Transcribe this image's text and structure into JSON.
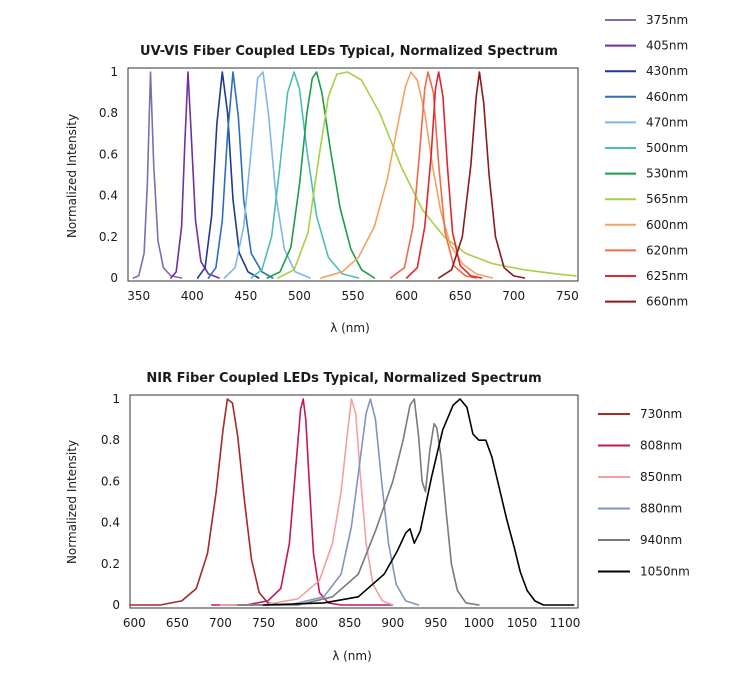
{
  "chart_data": [
    {
      "type": "line",
      "title": "UV-VIS Fiber Coupled LEDs Typical, Normalized Spectrum",
      "xlabel": "λ (nm)",
      "ylabel": "Normalized Intensity",
      "xlim": [
        340,
        760
      ],
      "ylim": [
        0,
        1
      ],
      "x_ticks": [
        "350",
        "400",
        "450",
        "500",
        "550",
        "600",
        "650",
        "700",
        "750"
      ],
      "y_ticks": [
        "0",
        "0.2",
        "0.4",
        "0.6",
        "0.8",
        "1"
      ],
      "legend_position": "right",
      "series": [
        {
          "name": "375nm",
          "color": "#7b6fb0",
          "points": [
            [
              345,
              0
            ],
            [
              350,
              0.01
            ],
            [
              355,
              0.12
            ],
            [
              358,
              0.45
            ],
            [
              361,
              1.0
            ],
            [
              364,
              0.55
            ],
            [
              368,
              0.18
            ],
            [
              373,
              0.05
            ],
            [
              380,
              0.01
            ],
            [
              390,
              0
            ]
          ]
        },
        {
          "name": "405nm",
          "color": "#7030a0",
          "points": [
            [
              380,
              0
            ],
            [
              385,
              0.03
            ],
            [
              390,
              0.25
            ],
            [
              393,
              0.65
            ],
            [
              396,
              1.0
            ],
            [
              399,
              0.7
            ],
            [
              403,
              0.28
            ],
            [
              408,
              0.08
            ],
            [
              415,
              0.02
            ],
            [
              425,
              0
            ]
          ]
        },
        {
          "name": "430nm",
          "color": "#1f3a93",
          "points": [
            [
              405,
              0
            ],
            [
              412,
              0.05
            ],
            [
              418,
              0.3
            ],
            [
              423,
              0.75
            ],
            [
              428,
              1.0
            ],
            [
              433,
              0.8
            ],
            [
              438,
              0.38
            ],
            [
              444,
              0.12
            ],
            [
              452,
              0.03
            ],
            [
              462,
              0
            ]
          ]
        },
        {
          "name": "460nm",
          "color": "#2e6fbd",
          "points": [
            [
              415,
              0
            ],
            [
              422,
              0.05
            ],
            [
              428,
              0.28
            ],
            [
              433,
              0.7
            ],
            [
              438,
              1.0
            ],
            [
              443,
              0.78
            ],
            [
              448,
              0.38
            ],
            [
              455,
              0.12
            ],
            [
              465,
              0.03
            ],
            [
              475,
              0
            ]
          ]
        },
        {
          "name": "470nm",
          "color": "#7fb7e8",
          "points": [
            [
              430,
              0
            ],
            [
              440,
              0.05
            ],
            [
              448,
              0.25
            ],
            [
              455,
              0.62
            ],
            [
              461,
              0.97
            ],
            [
              466,
              1.0
            ],
            [
              471,
              0.8
            ],
            [
              478,
              0.4
            ],
            [
              486,
              0.14
            ],
            [
              496,
              0.03
            ],
            [
              510,
              0
            ]
          ]
        },
        {
          "name": "500nm",
          "color": "#4bbfb4",
          "points": [
            [
              455,
              0
            ],
            [
              465,
              0.04
            ],
            [
              474,
              0.2
            ],
            [
              482,
              0.55
            ],
            [
              489,
              0.9
            ],
            [
              495,
              1.0
            ],
            [
              500,
              0.92
            ],
            [
              507,
              0.62
            ],
            [
              516,
              0.3
            ],
            [
              527,
              0.1
            ],
            [
              540,
              0.02
            ],
            [
              555,
              0
            ]
          ]
        },
        {
          "name": "530nm",
          "color": "#1a9e4a",
          "points": [
            [
              470,
              0
            ],
            [
              482,
              0.03
            ],
            [
              492,
              0.15
            ],
            [
              500,
              0.45
            ],
            [
              507,
              0.8
            ],
            [
              512,
              0.97
            ],
            [
              516,
              1.0
            ],
            [
              521,
              0.9
            ],
            [
              529,
              0.62
            ],
            [
              538,
              0.34
            ],
            [
              548,
              0.14
            ],
            [
              558,
              0.04
            ],
            [
              570,
              0
            ]
          ]
        },
        {
          "name": "565nm",
          "color": "#a9cf48",
          "points": [
            [
              480,
              0
            ],
            [
              495,
              0.04
            ],
            [
              508,
              0.22
            ],
            [
              518,
              0.58
            ],
            [
              527,
              0.88
            ],
            [
              535,
              0.99
            ],
            [
              545,
              1.0
            ],
            [
              558,
              0.96
            ],
            [
              575,
              0.8
            ],
            [
              595,
              0.54
            ],
            [
              615,
              0.33
            ],
            [
              635,
              0.2
            ],
            [
              655,
              0.12
            ],
            [
              680,
              0.07
            ],
            [
              710,
              0.04
            ],
            [
              740,
              0.02
            ],
            [
              758,
              0.01
            ]
          ]
        },
        {
          "name": "600nm",
          "color": "#f4a261",
          "points": [
            [
              520,
              0
            ],
            [
              540,
              0.03
            ],
            [
              555,
              0.1
            ],
            [
              570,
              0.25
            ],
            [
              582,
              0.48
            ],
            [
              592,
              0.75
            ],
            [
              599,
              0.93
            ],
            [
              604,
              1.0
            ],
            [
              610,
              0.96
            ],
            [
              617,
              0.8
            ],
            [
              624,
              0.55
            ],
            [
              632,
              0.32
            ],
            [
              641,
              0.16
            ],
            [
              652,
              0.07
            ],
            [
              665,
              0.02
            ],
            [
              680,
              0
            ]
          ]
        },
        {
          "name": "620nm",
          "color": "#ef6b4a",
          "points": [
            [
              585,
              0
            ],
            [
              598,
              0.05
            ],
            [
              606,
              0.25
            ],
            [
              612,
              0.6
            ],
            [
              617,
              0.92
            ],
            [
              620,
              1.0
            ],
            [
              625,
              0.9
            ],
            [
              630,
              0.55
            ],
            [
              636,
              0.22
            ],
            [
              644,
              0.06
            ],
            [
              655,
              0.01
            ],
            [
              665,
              0
            ]
          ]
        },
        {
          "name": "625nm",
          "color": "#e3262d",
          "points": [
            [
              600,
              0
            ],
            [
              610,
              0.05
            ],
            [
              617,
              0.25
            ],
            [
              623,
              0.6
            ],
            [
              627,
              0.92
            ],
            [
              630,
              1.0
            ],
            [
              634,
              0.88
            ],
            [
              638,
              0.55
            ],
            [
              643,
              0.22
            ],
            [
              650,
              0.06
            ],
            [
              660,
              0.01
            ],
            [
              670,
              0
            ]
          ]
        },
        {
          "name": "660nm",
          "color": "#8b1a1a",
          "points": [
            [
              630,
              0
            ],
            [
              642,
              0.04
            ],
            [
              652,
              0.2
            ],
            [
              660,
              0.55
            ],
            [
              665,
              0.88
            ],
            [
              668,
              1.0
            ],
            [
              672,
              0.85
            ],
            [
              677,
              0.5
            ],
            [
              683,
              0.2
            ],
            [
              691,
              0.05
            ],
            [
              700,
              0.01
            ],
            [
              710,
              0
            ]
          ]
        }
      ]
    },
    {
      "type": "line",
      "title": "NIR Fiber Coupled LEDs Typical, Normalized Spectrum",
      "xlabel": "λ (nm)",
      "ylabel": "Normalized Intensity",
      "xlim": [
        595,
        1115
      ],
      "ylim": [
        0,
        1
      ],
      "x_ticks": [
        "600",
        "650",
        "700",
        "750",
        "800",
        "850",
        "900",
        "950",
        "1000",
        "1050",
        "1100"
      ],
      "y_ticks": [
        "0",
        "0.2",
        "0.4",
        "0.6",
        "0.8",
        "1"
      ],
      "legend_position": "right",
      "series": [
        {
          "name": "730nm",
          "color": "#a52a2a",
          "points": [
            [
              595,
              0
            ],
            [
              630,
              0
            ],
            [
              655,
              0.02
            ],
            [
              672,
              0.08
            ],
            [
              685,
              0.25
            ],
            [
              695,
              0.55
            ],
            [
              703,
              0.85
            ],
            [
              708,
              1.0
            ],
            [
              714,
              0.98
            ],
            [
              720,
              0.82
            ],
            [
              728,
              0.5
            ],
            [
              736,
              0.22
            ],
            [
              745,
              0.06
            ],
            [
              755,
              0.01
            ],
            [
              770,
              0
            ]
          ]
        },
        {
          "name": "808nm",
          "color": "#c2185b",
          "points": [
            [
              690,
              0
            ],
            [
              730,
              0
            ],
            [
              755,
              0.02
            ],
            [
              770,
              0.08
            ],
            [
              780,
              0.3
            ],
            [
              788,
              0.7
            ],
            [
              793,
              0.95
            ],
            [
              796,
              1.0
            ],
            [
              799,
              0.9
            ],
            [
              803,
              0.6
            ],
            [
              808,
              0.25
            ],
            [
              815,
              0.06
            ],
            [
              825,
              0.01
            ],
            [
              840,
              0
            ],
            [
              900,
              0
            ]
          ]
        },
        {
          "name": "850nm",
          "color": "#f4a0a0",
          "points": [
            [
              700,
              0
            ],
            [
              750,
              0
            ],
            [
              790,
              0.03
            ],
            [
              815,
              0.12
            ],
            [
              830,
              0.3
            ],
            [
              840,
              0.55
            ],
            [
              847,
              0.82
            ],
            [
              852,
              1.0
            ],
            [
              857,
              0.93
            ],
            [
              862,
              0.65
            ],
            [
              869,
              0.3
            ],
            [
              877,
              0.1
            ],
            [
              888,
              0.02
            ],
            [
              900,
              0
            ]
          ]
        },
        {
          "name": "880nm",
          "color": "#7f95bd",
          "points": [
            [
              720,
              0
            ],
            [
              780,
              0
            ],
            [
              820,
              0.04
            ],
            [
              840,
              0.15
            ],
            [
              852,
              0.38
            ],
            [
              862,
              0.7
            ],
            [
              869,
              0.93
            ],
            [
              874,
              1.0
            ],
            [
              880,
              0.9
            ],
            [
              887,
              0.6
            ],
            [
              895,
              0.3
            ],
            [
              904,
              0.1
            ],
            [
              915,
              0.02
            ],
            [
              930,
              0
            ]
          ]
        },
        {
          "name": "940nm",
          "color": "#7a7a7a",
          "points": [
            [
              720,
              0
            ],
            [
              790,
              0
            ],
            [
              830,
              0.04
            ],
            [
              860,
              0.15
            ],
            [
              880,
              0.36
            ],
            [
              900,
              0.6
            ],
            [
              912,
              0.8
            ],
            [
              920,
              0.97
            ],
            [
              925,
              1.0
            ],
            [
              930,
              0.82
            ],
            [
              934,
              0.6
            ],
            [
              938,
              0.55
            ],
            [
              943,
              0.75
            ],
            [
              948,
              0.88
            ],
            [
              951,
              0.86
            ],
            [
              956,
              0.72
            ],
            [
              962,
              0.45
            ],
            [
              968,
              0.2
            ],
            [
              975,
              0.07
            ],
            [
              985,
              0.01
            ],
            [
              1000,
              0
            ]
          ]
        },
        {
          "name": "1050nm",
          "color": "#000000",
          "points": [
            [
              750,
              0
            ],
            [
              820,
              0.01
            ],
            [
              860,
              0.04
            ],
            [
              890,
              0.15
            ],
            [
              905,
              0.26
            ],
            [
              915,
              0.35
            ],
            [
              920,
              0.37
            ],
            [
              925,
              0.3
            ],
            [
              932,
              0.36
            ],
            [
              945,
              0.62
            ],
            [
              958,
              0.85
            ],
            [
              970,
              0.97
            ],
            [
              978,
              1.0
            ],
            [
              986,
              0.96
            ],
            [
              993,
              0.83
            ],
            [
              1000,
              0.8
            ],
            [
              1008,
              0.8
            ],
            [
              1015,
              0.72
            ],
            [
              1023,
              0.58
            ],
            [
              1032,
              0.42
            ],
            [
              1041,
              0.28
            ],
            [
              1048,
              0.16
            ],
            [
              1056,
              0.07
            ],
            [
              1065,
              0.02
            ],
            [
              1075,
              0
            ],
            [
              1110,
              0
            ]
          ]
        }
      ]
    }
  ]
}
